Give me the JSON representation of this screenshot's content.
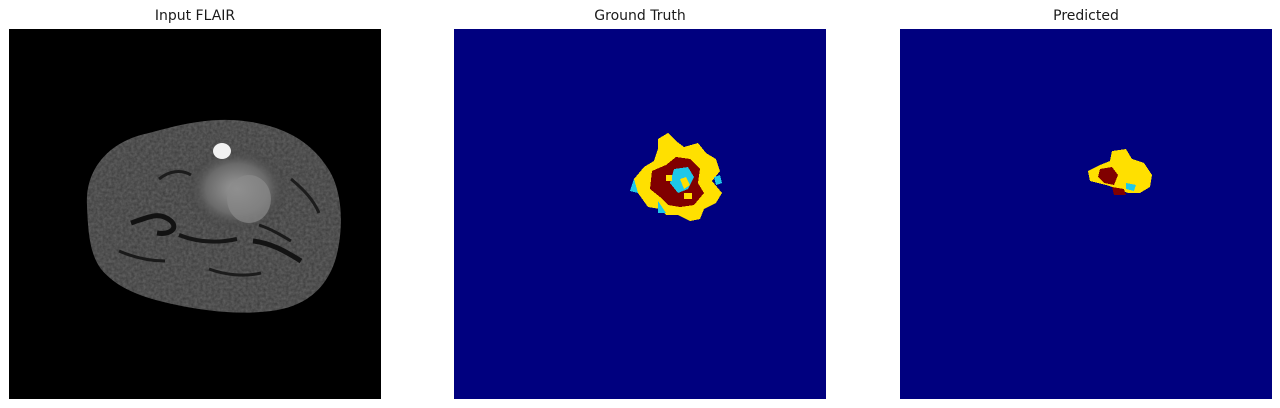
{
  "panels": [
    {
      "title": "Input FLAIR",
      "image": "brain-mri-flair-slice"
    },
    {
      "title": "Ground Truth",
      "image": "tumor-segmentation-mask"
    },
    {
      "title": "Predicted",
      "image": "predicted-segmentation-mask"
    }
  ],
  "colors": {
    "mask_background": "#00007f",
    "necrotic_core": "#800000",
    "edema": "#ffe000",
    "enhancing_tumor": "#1ec8e8",
    "mri_background": "#000000"
  }
}
